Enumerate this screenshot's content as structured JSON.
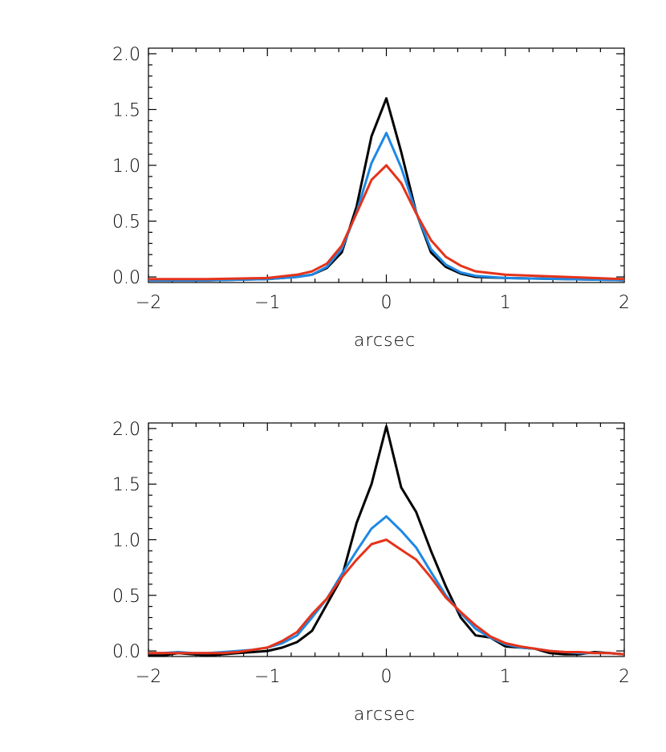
{
  "chart_data": [
    {
      "type": "line",
      "title": "",
      "xlabel": "arcsec",
      "ylabel": "",
      "xlim": [
        -2,
        2
      ],
      "ylim": [
        -0.05,
        2.05
      ],
      "xticks": [
        -2,
        -1,
        0,
        1,
        2
      ],
      "xtick_labels": [
        "−2",
        "−1",
        "0",
        "1",
        "2"
      ],
      "yticks": [
        0.0,
        0.5,
        1.0,
        1.5,
        2.0
      ],
      "ytick_labels": [
        "0.0",
        "0.5",
        "1.0",
        "1.5",
        "2.0"
      ],
      "grid": false,
      "series": [
        {
          "color": "#000000",
          "x": [
            -2.0,
            -1.5,
            -1.0,
            -0.75,
            -0.625,
            -0.5,
            -0.375,
            -0.25,
            -0.125,
            0.0,
            0.125,
            0.25,
            0.375,
            0.5,
            0.625,
            0.75,
            1.0,
            1.5,
            2.0
          ],
          "y": [
            -0.03,
            -0.03,
            -0.02,
            0.0,
            0.02,
            0.08,
            0.22,
            0.63,
            1.26,
            1.6,
            1.12,
            0.58,
            0.22,
            0.09,
            0.03,
            0.0,
            -0.01,
            -0.02,
            -0.03
          ]
        },
        {
          "color": "#1e88e5",
          "x": [
            -2.0,
            -1.5,
            -1.0,
            -0.75,
            -0.625,
            -0.5,
            -0.375,
            -0.25,
            -0.125,
            0.0,
            0.125,
            0.25,
            0.375,
            0.5,
            0.625,
            0.75,
            1.0,
            1.5,
            2.0
          ],
          "y": [
            -0.03,
            -0.03,
            -0.02,
            0.0,
            0.02,
            0.09,
            0.25,
            0.58,
            1.02,
            1.29,
            0.98,
            0.58,
            0.25,
            0.11,
            0.04,
            0.01,
            -0.01,
            -0.02,
            -0.03
          ]
        },
        {
          "color": "#e5331a",
          "x": [
            -2.0,
            -1.5,
            -1.0,
            -0.75,
            -0.625,
            -0.5,
            -0.375,
            -0.25,
            -0.125,
            0.0,
            0.125,
            0.25,
            0.375,
            0.5,
            0.625,
            0.75,
            1.0,
            1.5,
            2.0
          ],
          "y": [
            -0.02,
            -0.02,
            -0.01,
            0.02,
            0.05,
            0.12,
            0.28,
            0.57,
            0.87,
            1.0,
            0.84,
            0.57,
            0.33,
            0.18,
            0.1,
            0.05,
            0.02,
            0.0,
            -0.02
          ]
        }
      ]
    },
    {
      "type": "line",
      "title": "",
      "xlabel": "arcsec",
      "ylabel": "",
      "xlim": [
        -2,
        2
      ],
      "ylim": [
        -0.05,
        2.05
      ],
      "xticks": [
        -2,
        -1,
        0,
        1,
        2
      ],
      "xtick_labels": [
        "−2",
        "−1",
        "0",
        "1",
        "2"
      ],
      "yticks": [
        0.0,
        0.5,
        1.0,
        1.5,
        2.0
      ],
      "ytick_labels": [
        "0.0",
        "0.5",
        "1.0",
        "1.5",
        "2.0"
      ],
      "grid": false,
      "series": [
        {
          "color": "#000000",
          "x": [
            -2.0,
            -1.875,
            -1.75,
            -1.625,
            -1.5,
            -1.375,
            -1.25,
            -1.125,
            -1.0,
            -0.875,
            -0.75,
            -0.625,
            -0.5,
            -0.375,
            -0.25,
            -0.125,
            0.0,
            0.125,
            0.25,
            0.375,
            0.5,
            0.625,
            0.75,
            0.875,
            1.0,
            1.125,
            1.25,
            1.375,
            1.5,
            1.625,
            1.75,
            1.875,
            2.0
          ],
          "y": [
            -0.04,
            -0.04,
            -0.02,
            -0.03,
            -0.04,
            -0.03,
            -0.02,
            -0.01,
            0.0,
            0.03,
            0.08,
            0.18,
            0.42,
            0.66,
            1.15,
            1.5,
            2.02,
            1.47,
            1.25,
            0.9,
            0.58,
            0.3,
            0.14,
            0.12,
            0.04,
            0.03,
            0.02,
            -0.02,
            -0.03,
            -0.03,
            -0.01,
            -0.02,
            -0.03
          ]
        },
        {
          "color": "#1e88e5",
          "x": [
            -2.0,
            -1.875,
            -1.75,
            -1.625,
            -1.5,
            -1.375,
            -1.25,
            -1.125,
            -1.0,
            -0.875,
            -0.75,
            -0.625,
            -0.5,
            -0.375,
            -0.25,
            -0.125,
            0.0,
            0.125,
            0.25,
            0.375,
            0.5,
            0.625,
            0.75,
            0.875,
            1.0,
            1.125,
            1.25,
            1.375,
            1.5,
            1.625,
            1.75,
            1.875,
            2.0
          ],
          "y": [
            -0.02,
            -0.02,
            -0.01,
            -0.02,
            -0.02,
            -0.01,
            0.0,
            0.01,
            0.03,
            0.07,
            0.14,
            0.3,
            0.47,
            0.69,
            0.9,
            1.1,
            1.21,
            1.08,
            0.93,
            0.71,
            0.5,
            0.34,
            0.2,
            0.12,
            0.06,
            0.03,
            0.02,
            0.0,
            -0.01,
            -0.02,
            -0.02,
            -0.02,
            -0.03
          ]
        },
        {
          "color": "#e5331a",
          "x": [
            -2.0,
            -1.875,
            -1.75,
            -1.625,
            -1.5,
            -1.375,
            -1.25,
            -1.125,
            -1.0,
            -0.875,
            -0.75,
            -0.625,
            -0.5,
            -0.375,
            -0.25,
            -0.125,
            0.0,
            0.125,
            0.25,
            0.375,
            0.5,
            0.625,
            0.75,
            0.875,
            1.0,
            1.125,
            1.25,
            1.375,
            1.5,
            1.625,
            1.75,
            1.875,
            2.0
          ],
          "y": [
            -0.02,
            -0.02,
            -0.02,
            -0.02,
            -0.02,
            -0.02,
            -0.01,
            0.01,
            0.03,
            0.09,
            0.17,
            0.33,
            0.47,
            0.66,
            0.82,
            0.96,
            1.0,
            0.91,
            0.82,
            0.66,
            0.48,
            0.35,
            0.23,
            0.13,
            0.07,
            0.04,
            0.02,
            0.0,
            -0.01,
            -0.01,
            -0.02,
            -0.02,
            -0.03
          ]
        }
      ]
    }
  ]
}
